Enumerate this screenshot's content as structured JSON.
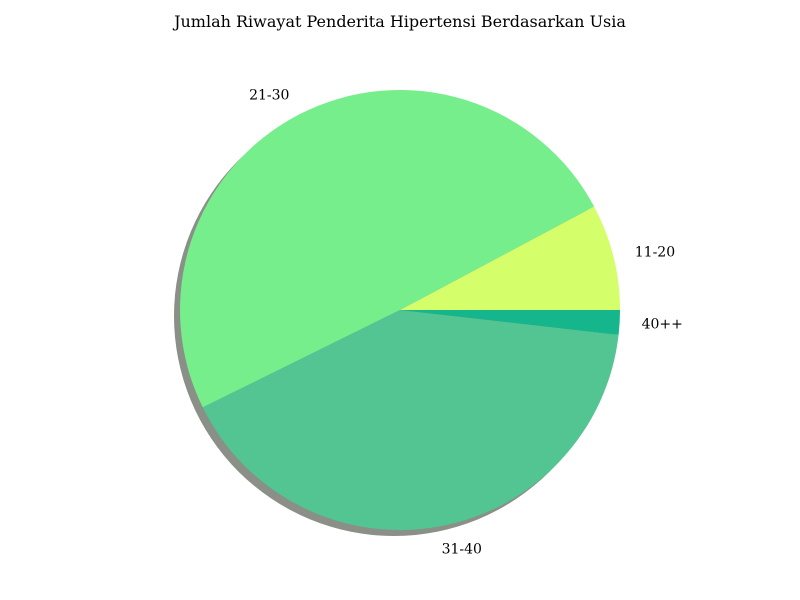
{
  "chart_data": {
    "type": "pie",
    "title": "Jumlah Riwayat Penderita Hipertensi Berdasarkan Usia",
    "start_angle_deg": 0,
    "direction": "counterclockwise",
    "shadow": true,
    "slices": [
      {
        "label": "11-20",
        "value": 7.8,
        "color": "#d4ff6b"
      },
      {
        "label": "21-30",
        "value": 49.5,
        "color": "#76ee8c"
      },
      {
        "label": "31-40",
        "value": 40.9,
        "color": "#53c593"
      },
      {
        "label": "40++",
        "value": 1.8,
        "color": "#16b68c"
      }
    ]
  }
}
